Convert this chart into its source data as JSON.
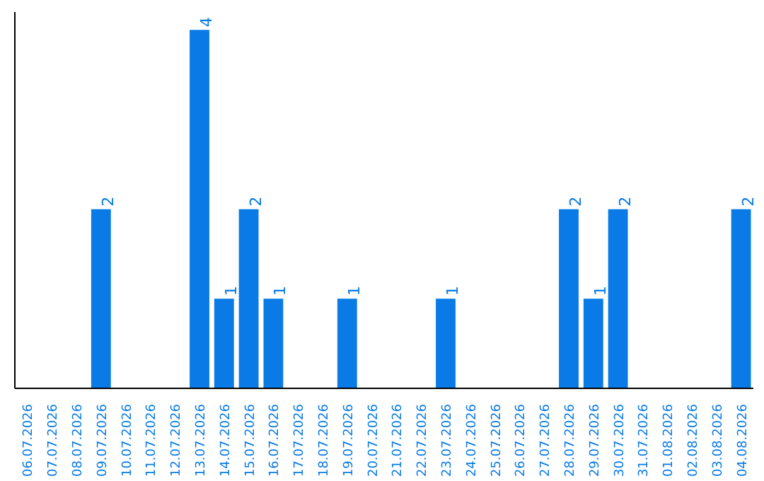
{
  "chart_data": {
    "type": "bar",
    "categories": [
      "06.07.2026",
      "07.07.2026",
      "08.07.2026",
      "09.07.2026",
      "10.07.2026",
      "11.07.2026",
      "12.07.2026",
      "13.07.2026",
      "14.07.2026",
      "15.07.2026",
      "16.07.2026",
      "17.07.2026",
      "18.07.2026",
      "19.07.2026",
      "20.07.2026",
      "21.07.2026",
      "22.07.2026",
      "23.07.2026",
      "24.07.2026",
      "25.07.2026",
      "26.07.2026",
      "27.07.2026",
      "28.07.2026",
      "29.07.2026",
      "30.07.2026",
      "31.07.2026",
      "01.08.2026",
      "02.08.2026",
      "03.08.2026",
      "04.08.2026"
    ],
    "values": [
      0,
      0,
      0,
      2,
      0,
      0,
      0,
      4,
      1,
      2,
      1,
      0,
      0,
      1,
      0,
      0,
      0,
      1,
      0,
      0,
      0,
      0,
      2,
      1,
      2,
      0,
      0,
      0,
      0,
      2
    ],
    "value_labels": [
      null,
      null,
      null,
      "2",
      null,
      null,
      null,
      "4",
      "1",
      "2",
      "1",
      null,
      null,
      "1",
      null,
      null,
      null,
      "1",
      null,
      null,
      null,
      null,
      "2",
      "1",
      "2",
      null,
      null,
      null,
      null,
      "2"
    ],
    "color": "#0a7be6",
    "grid": false
  }
}
